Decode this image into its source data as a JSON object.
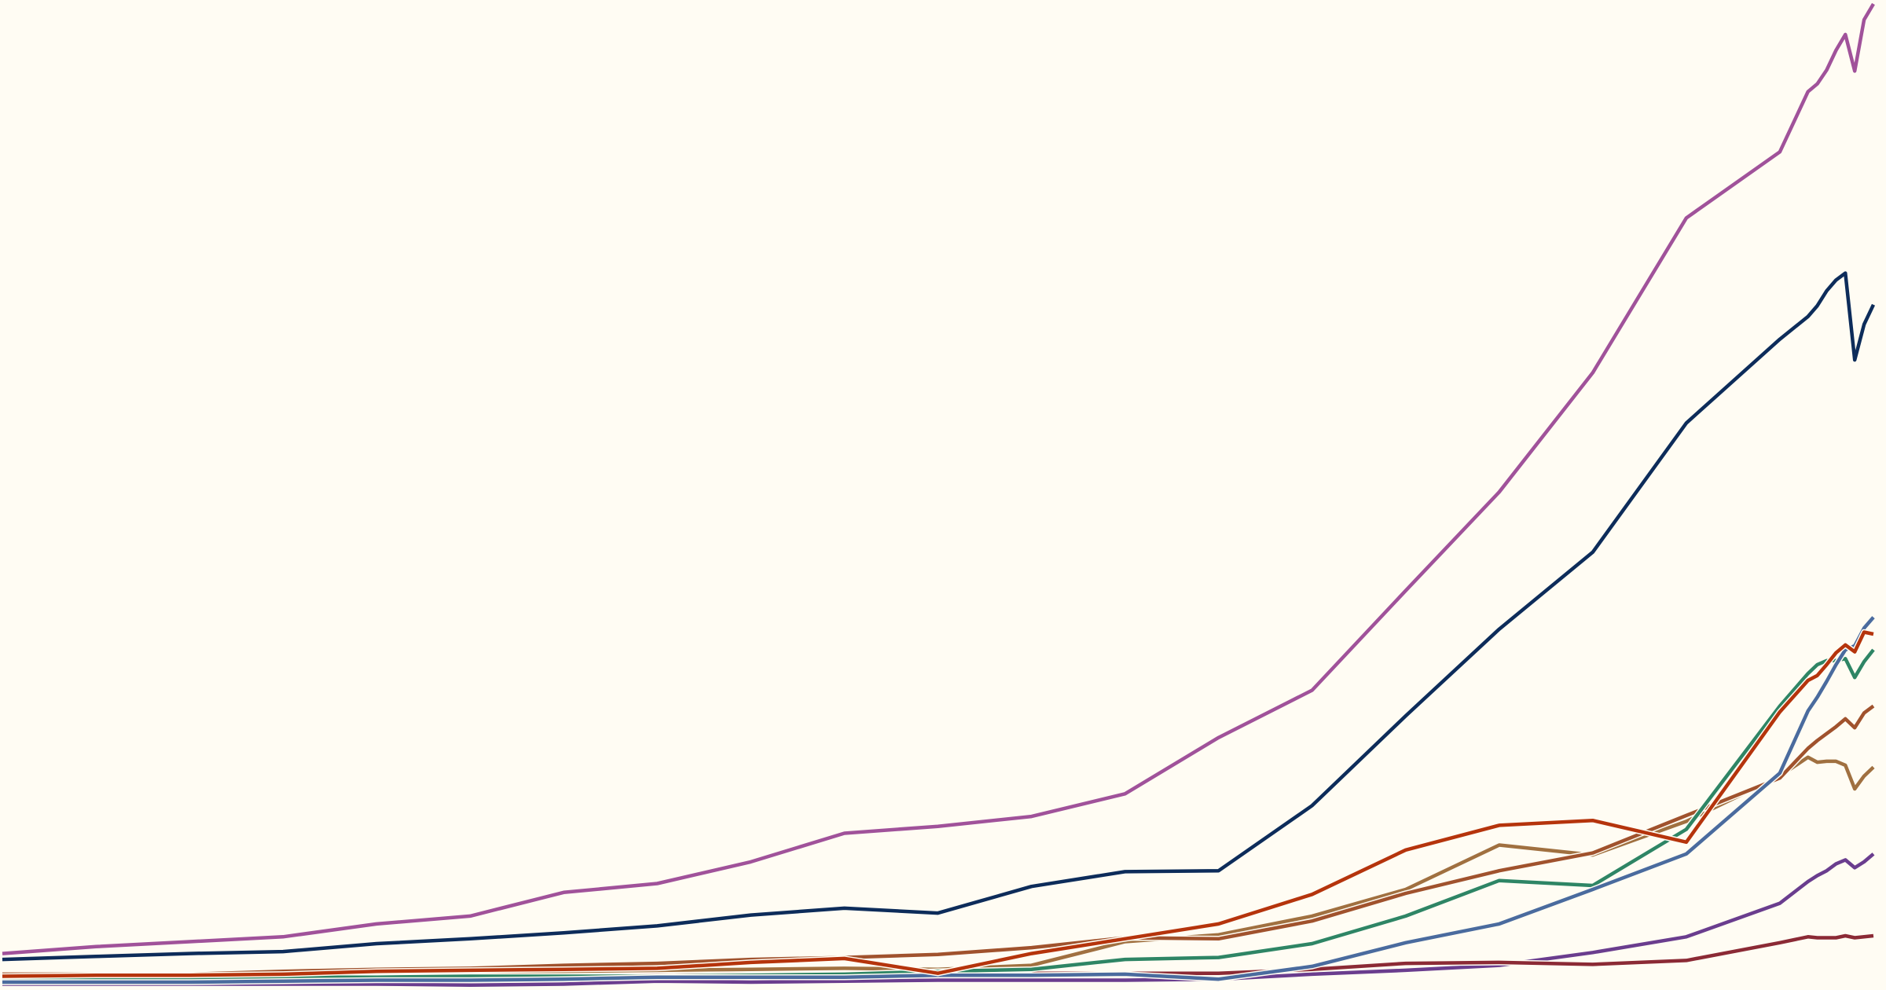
{
  "chart_data": {
    "type": "line",
    "title": "",
    "xlabel": "",
    "ylabel": "",
    "grid": false,
    "axes_visible": false,
    "background": "#fffcf3",
    "xlim": [
      0,
      100
    ],
    "ylim": [
      0,
      100
    ],
    "x": [
      0,
      5,
      10,
      15,
      20,
      25,
      30,
      35,
      40,
      45,
      50,
      55,
      60,
      65,
      70,
      75,
      80,
      85,
      90,
      95,
      96.5,
      97,
      97.5,
      98,
      98.5,
      99,
      99.5,
      100
    ],
    "series": [
      {
        "color": "#6a3d8e",
        "values": [
          0.2,
          0.2,
          0.2,
          0.2,
          0.2,
          0.1,
          0.2,
          0.5,
          0.4,
          0.5,
          0.6,
          0.6,
          0.6,
          0.7,
          1.2,
          1.6,
          2.1,
          3.4,
          5.0,
          8.4,
          10.6,
          11.2,
          11.7,
          12.4,
          12.8,
          12.0,
          12.6,
          13.4
        ]
      },
      {
        "color": "#8b2a35",
        "values": [
          0.9,
          0.9,
          0.9,
          1.0,
          1.0,
          1.1,
          1.1,
          1.2,
          1.2,
          1.2,
          1.3,
          1.3,
          1.3,
          1.3,
          1.7,
          2.3,
          2.4,
          2.2,
          2.6,
          4.4,
          5.0,
          4.9,
          4.9,
          4.9,
          5.1,
          4.9,
          5.0,
          5.1
        ]
      },
      {
        "color": "#a07040",
        "values": [
          1.0,
          1.0,
          1.0,
          1.1,
          1.8,
          1.5,
          1.5,
          1.6,
          1.7,
          1.8,
          1.7,
          2.1,
          4.5,
          5.2,
          7.1,
          9.8,
          14.3,
          13.3,
          16.7,
          21.3,
          23.2,
          22.7,
          22.8,
          22.8,
          22.4,
          20.0,
          21.3,
          22.2
        ]
      },
      {
        "color": "#a0522d",
        "values": [
          1.2,
          1.2,
          1.2,
          1.5,
          1.7,
          1.8,
          2.1,
          2.3,
          2.7,
          2.9,
          3.2,
          3.9,
          4.9,
          4.8,
          6.6,
          9.4,
          11.7,
          13.5,
          17.3,
          21.1,
          24.1,
          24.9,
          25.6,
          26.3,
          27.1,
          26.2,
          27.7,
          28.4
        ]
      },
      {
        "color": "#2e8565",
        "values": [
          0.7,
          0.7,
          0.7,
          0.9,
          0.9,
          1.0,
          1.0,
          1.0,
          1.1,
          1.2,
          1.5,
          1.7,
          2.7,
          2.9,
          4.3,
          7.1,
          10.7,
          10.2,
          15.9,
          28.4,
          31.7,
          32.6,
          33.0,
          33.0,
          33.2,
          31.3,
          32.9,
          34.1
        ]
      },
      {
        "color": "#4a6b9e",
        "values": [
          0.4,
          0.4,
          0.4,
          0.5,
          0.6,
          0.6,
          0.7,
          0.9,
          0.9,
          0.9,
          1.1,
          1.1,
          1.2,
          0.7,
          2.0,
          4.4,
          6.3,
          9.8,
          13.4,
          21.6,
          27.9,
          29.3,
          30.9,
          32.6,
          34.1,
          34.5,
          36.3,
          37.4
        ]
      },
      {
        "color": "#b5340c",
        "values": [
          1.0,
          1.1,
          1.1,
          1.2,
          1.5,
          1.6,
          1.7,
          1.8,
          2.4,
          2.8,
          1.3,
          3.3,
          4.8,
          6.3,
          9.3,
          13.8,
          16.3,
          16.8,
          14.6,
          27.8,
          31.0,
          31.5,
          32.6,
          33.8,
          34.6,
          33.9,
          35.9,
          35.7
        ]
      },
      {
        "color": "#0d2c5a",
        "values": [
          2.7,
          3.0,
          3.3,
          3.5,
          4.3,
          4.8,
          5.4,
          6.1,
          7.2,
          7.9,
          7.4,
          10.1,
          11.6,
          11.7,
          18.3,
          27.4,
          36.2,
          44.0,
          57.1,
          65.6,
          67.9,
          69.0,
          70.5,
          71.6,
          72.3,
          63.5,
          67.1,
          69.1
        ]
      },
      {
        "color": "#a0529a",
        "values": [
          3.3,
          4.0,
          4.5,
          5.0,
          6.3,
          7.1,
          9.5,
          10.4,
          12.6,
          15.5,
          16.2,
          17.2,
          19.5,
          25.2,
          30.0,
          40.1,
          50.1,
          62.2,
          77.9,
          84.6,
          90.7,
          91.5,
          92.9,
          94.9,
          96.5,
          92.8,
          98.0,
          99.6
        ]
      }
    ]
  }
}
